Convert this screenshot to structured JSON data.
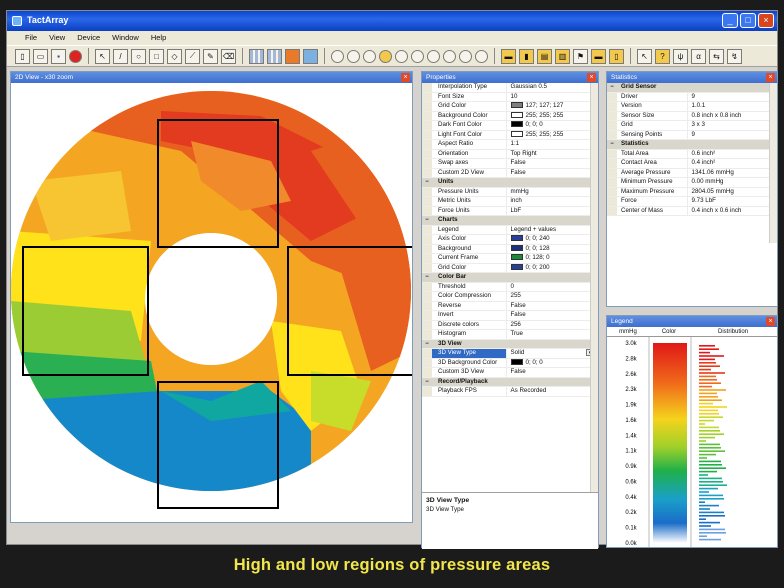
{
  "window": {
    "title": "TactArray"
  },
  "menu": [
    "File",
    "View",
    "Device",
    "Window",
    "Help"
  ],
  "view2d": {
    "title": "2D View - x30 zoom"
  },
  "properties": {
    "title": "Properties",
    "rows": [
      {
        "type": "prop",
        "key": "Interpolation Type",
        "value": "Gaussian 0.5"
      },
      {
        "type": "prop",
        "key": "Font Size",
        "value": "10"
      },
      {
        "type": "prop",
        "key": "Grid Color",
        "value": "127; 127; 127",
        "swatch": "#7f7f7f"
      },
      {
        "type": "prop",
        "key": "Background Color",
        "value": "255; 255; 255",
        "swatch": "#ffffff"
      },
      {
        "type": "prop",
        "key": "Dark Font Color",
        "value": "0; 0; 0",
        "swatch": "#000000"
      },
      {
        "type": "prop",
        "key": "Light Font Color",
        "value": "255; 255; 255",
        "swatch": "#ffffff"
      },
      {
        "type": "prop",
        "key": "Aspect Ratio",
        "value": "1:1"
      },
      {
        "type": "prop",
        "key": "Orientation",
        "value": "Top Right"
      },
      {
        "type": "prop",
        "key": "Swap axes",
        "value": "False"
      },
      {
        "type": "prop",
        "key": "Custom 2D View",
        "value": "False"
      },
      {
        "type": "cat",
        "key": "Units"
      },
      {
        "type": "prop",
        "key": "Pressure Units",
        "value": "mmHg"
      },
      {
        "type": "prop",
        "key": "Metric Units",
        "value": "inch"
      },
      {
        "type": "prop",
        "key": "Force Units",
        "value": "LbF"
      },
      {
        "type": "cat",
        "key": "Charts"
      },
      {
        "type": "prop",
        "key": "Legend",
        "value": "Legend + values"
      },
      {
        "type": "prop",
        "key": "Axis Color",
        "value": "0; 0; 240",
        "swatch": "#2a3f9a"
      },
      {
        "type": "prop",
        "key": "Background",
        "value": "0; 0; 128",
        "swatch": "#1f2f80"
      },
      {
        "type": "prop",
        "key": "Current Frame",
        "value": "0; 128; 0",
        "swatch": "#1a8a3a"
      },
      {
        "type": "prop",
        "key": "Grid Color",
        "value": "0; 0; 200",
        "swatch": "#2a3f9a"
      },
      {
        "type": "cat",
        "key": "Color Bar"
      },
      {
        "type": "prop",
        "key": "Threshold",
        "value": "0"
      },
      {
        "type": "prop",
        "key": "Color Compression",
        "value": "255"
      },
      {
        "type": "prop",
        "key": "Reverse",
        "value": "False"
      },
      {
        "type": "prop",
        "key": "Invert",
        "value": "False"
      },
      {
        "type": "prop",
        "key": "Discrete colors",
        "value": "256"
      },
      {
        "type": "prop",
        "key": "Histogram",
        "value": "True"
      },
      {
        "type": "cat",
        "key": "3D View"
      },
      {
        "type": "prop",
        "key": "3D View Type",
        "value": "Solid",
        "dropdown": true,
        "selected": true
      },
      {
        "type": "prop",
        "key": "3D Background Color",
        "value": "0; 0; 0",
        "swatch": "#000000"
      },
      {
        "type": "prop",
        "key": "Custom 3D View",
        "value": "False"
      },
      {
        "type": "cat",
        "key": "Record/Playback"
      },
      {
        "type": "prop",
        "key": "Playback FPS",
        "value": "As Recorded"
      }
    ],
    "desc_title": "3D View Type",
    "desc_text": "3D View Type"
  },
  "statistics": {
    "title": "Statistics",
    "rows": [
      {
        "type": "cat",
        "key": "Grid Sensor"
      },
      {
        "type": "prop",
        "key": "Driver",
        "value": "9"
      },
      {
        "type": "prop",
        "key": "Version",
        "value": "1.0.1"
      },
      {
        "type": "prop",
        "key": "Sensor Size",
        "value": "0.8 inch x 0.8 inch"
      },
      {
        "type": "prop",
        "key": "Grid",
        "value": "3 x 3"
      },
      {
        "type": "prop",
        "key": "Sensing Points",
        "value": "9"
      },
      {
        "type": "cat",
        "key": "Statistics"
      },
      {
        "type": "prop",
        "key": "Total Area",
        "value": "0.6 inch²"
      },
      {
        "type": "prop",
        "key": "Contact Area",
        "value": "0.4 inch²"
      },
      {
        "type": "prop",
        "key": "Average Pressure",
        "value": "1341.06 mmHg"
      },
      {
        "type": "prop",
        "key": "Minimum Pressure",
        "value": "0.00 mmHg"
      },
      {
        "type": "prop",
        "key": "Maximum Pressure",
        "value": "2804.05 mmHg"
      },
      {
        "type": "prop",
        "key": "Force",
        "value": "9.73 LbF"
      },
      {
        "type": "prop",
        "key": "Center of Mass",
        "value": "0.4 inch x 0.6 inch"
      }
    ]
  },
  "legend": {
    "title": "Legend",
    "headers": [
      "mmHg",
      "Color",
      "Distribution"
    ],
    "ticks": [
      "3.0k",
      "2.8k",
      "2.6k",
      "2.3k",
      "1.9k",
      "1.6k",
      "1.4k",
      "1.1k",
      "0.9k",
      "0.6k",
      "0.4k",
      "0.2k",
      "0.1k",
      "0.0k"
    ]
  },
  "caption": "High and low regions of pressure areas"
}
